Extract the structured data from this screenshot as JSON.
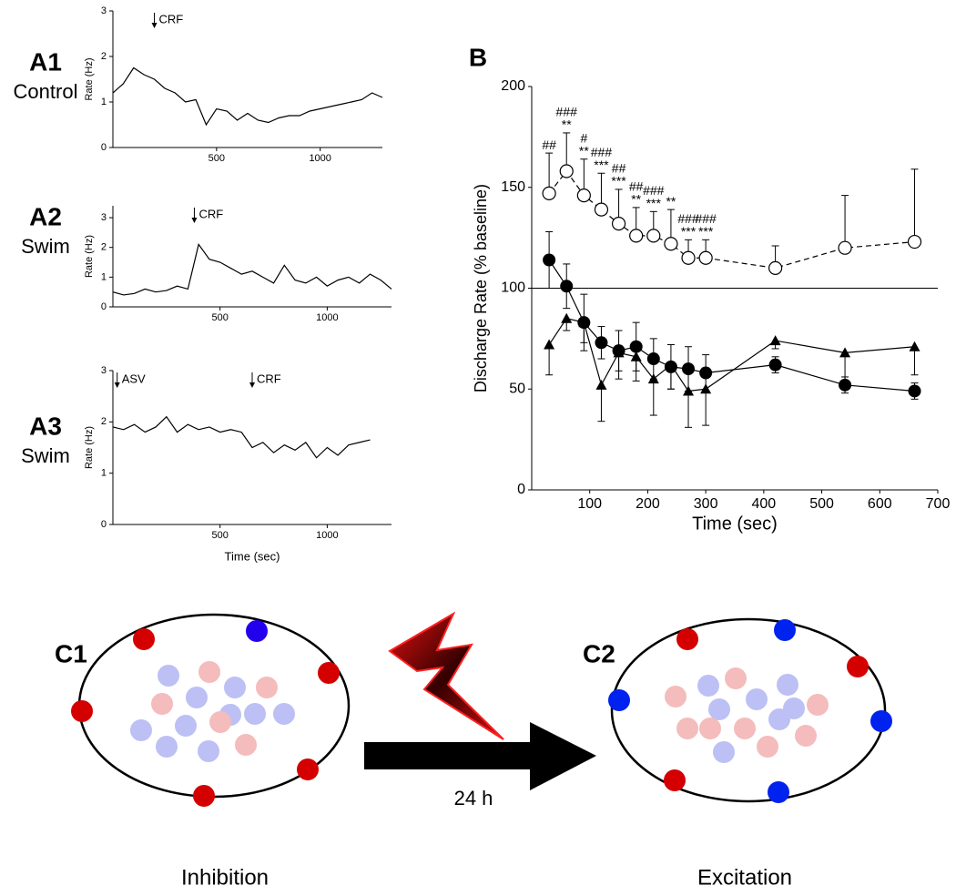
{
  "chart_data": [
    {
      "type": "line",
      "panel_label": "A1",
      "panel_subtitle": "Control",
      "ylabel": "Rate (Hz)",
      "x": [
        0,
        50,
        100,
        150,
        200,
        250,
        300,
        350,
        400,
        450,
        500,
        550,
        600,
        650,
        700,
        750,
        800,
        850,
        900,
        950,
        1000,
        1050,
        1100,
        1150,
        1200,
        1250,
        1300
      ],
      "values": [
        1.2,
        1.4,
        1.75,
        1.6,
        1.5,
        1.3,
        1.2,
        1.0,
        1.05,
        0.5,
        0.85,
        0.8,
        0.6,
        0.75,
        0.6,
        0.55,
        0.65,
        0.7,
        0.7,
        0.8,
        0.85,
        0.9,
        0.95,
        1.0,
        1.05,
        1.2,
        1.1
      ],
      "color": "#000000",
      "xlim": [
        0,
        1300
      ],
      "xticks": [
        500,
        1000
      ],
      "ylim": [
        0,
        3
      ],
      "yticks": [
        0,
        1,
        2,
        3
      ],
      "annotations": [
        {
          "text": "CRF",
          "x": 200
        }
      ]
    },
    {
      "type": "line",
      "panel_label": "A2",
      "panel_subtitle": "Swim",
      "ylabel": "Rate (Hz)",
      "x": [
        0,
        50,
        100,
        150,
        200,
        250,
        300,
        350,
        400,
        450,
        500,
        550,
        600,
        650,
        700,
        750,
        800,
        850,
        900,
        950,
        1000,
        1050,
        1100,
        1150,
        1200,
        1250,
        1300
      ],
      "values": [
        0.5,
        0.4,
        0.45,
        0.6,
        0.5,
        0.55,
        0.7,
        0.6,
        2.1,
        1.6,
        1.5,
        1.3,
        1.1,
        1.2,
        1.0,
        0.8,
        1.4,
        0.9,
        0.8,
        1.0,
        0.7,
        0.9,
        1.0,
        0.8,
        1.1,
        0.9,
        0.6
      ],
      "color": "#000000",
      "xlim": [
        0,
        1300
      ],
      "xticks": [
        500,
        1000
      ],
      "ylim": [
        0,
        3.4
      ],
      "yticks": [
        0,
        1,
        2,
        3
      ],
      "annotations": [
        {
          "text": "CRF",
          "x": 380
        }
      ]
    },
    {
      "type": "line",
      "panel_label": "A3",
      "panel_subtitle": "Swim",
      "ylabel": "Rate (Hz)",
      "xlabel": "Time (sec)",
      "x": [
        0,
        50,
        100,
        150,
        200,
        250,
        300,
        350,
        400,
        450,
        500,
        550,
        600,
        650,
        700,
        750,
        800,
        850,
        900,
        950,
        1000,
        1050,
        1100,
        1150,
        1200
      ],
      "values": [
        1.9,
        1.85,
        1.95,
        1.8,
        1.9,
        2.1,
        1.8,
        1.95,
        1.85,
        1.9,
        1.8,
        1.85,
        1.8,
        1.5,
        1.6,
        1.4,
        1.55,
        1.45,
        1.6,
        1.3,
        1.5,
        1.35,
        1.55,
        1.6,
        1.65
      ],
      "color": "#000000",
      "xlim": [
        0,
        1300
      ],
      "xticks": [
        500,
        1000
      ],
      "ylim": [
        0,
        3
      ],
      "yticks": [
        0,
        1,
        2,
        3
      ],
      "annotations": [
        {
          "text": "ASV",
          "x": 20
        },
        {
          "text": "CRF",
          "x": 650
        }
      ]
    },
    {
      "type": "errorline",
      "panel_label": "B",
      "xlabel": "Time (sec)",
      "ylabel": "Discharge Rate (% baseline)",
      "x": [
        30,
        60,
        90,
        120,
        150,
        180,
        210,
        240,
        270,
        300,
        420,
        540,
        660
      ],
      "series": [
        {
          "marker": "open-circle",
          "line": "dashed",
          "color": "#000000",
          "error_direction": "up",
          "values": [
            147,
            158,
            146,
            139,
            132,
            126,
            126,
            122,
            115,
            115,
            110,
            120,
            123
          ],
          "errors": [
            20,
            19,
            18,
            18,
            17,
            14,
            12,
            17,
            9,
            9,
            11,
            26,
            36
          ],
          "sig_labels": [
            [
              "##"
            ],
            [
              "###",
              "**"
            ],
            [
              "#",
              "**"
            ],
            [
              "###",
              "***"
            ],
            [
              "##",
              "***"
            ],
            [
              "##",
              "**"
            ],
            [
              "###",
              "***"
            ],
            [
              "**"
            ],
            [
              "###",
              "***"
            ],
            [
              "###",
              "***"
            ],
            null,
            null,
            null
          ]
        },
        {
          "marker": "filled-circle",
          "line": "solid",
          "color": "#000000",
          "error_direction": "both",
          "values": [
            114,
            101,
            83,
            73,
            69,
            71,
            65,
            61,
            60,
            58,
            62,
            52,
            49
          ],
          "errors": [
            14,
            11,
            14,
            8,
            10,
            12,
            10,
            11,
            11,
            9,
            4,
            4,
            4
          ]
        },
        {
          "marker": "filled-triangle",
          "line": "solid",
          "color": "#000000",
          "error_direction": "down",
          "values": [
            72,
            85,
            83,
            52,
            68,
            66,
            55,
            62,
            49,
            50,
            74,
            68,
            71
          ],
          "errors": [
            15,
            6,
            10,
            18,
            13,
            12,
            18,
            12,
            18,
            18,
            4,
            14,
            14
          ]
        }
      ],
      "hline": 100,
      "xlim": [
        0,
        700
      ],
      "xticks": [
        100,
        200,
        300,
        400,
        500,
        600,
        700
      ],
      "ylim": [
        0,
        200
      ],
      "yticks": [
        0,
        50,
        100,
        150,
        200
      ]
    }
  ],
  "diagram": {
    "panels": [
      {
        "label": "C1",
        "caption": "Inhibition"
      },
      {
        "label": "C2",
        "caption": "Excitation"
      }
    ],
    "arrow_label": "24 h"
  }
}
